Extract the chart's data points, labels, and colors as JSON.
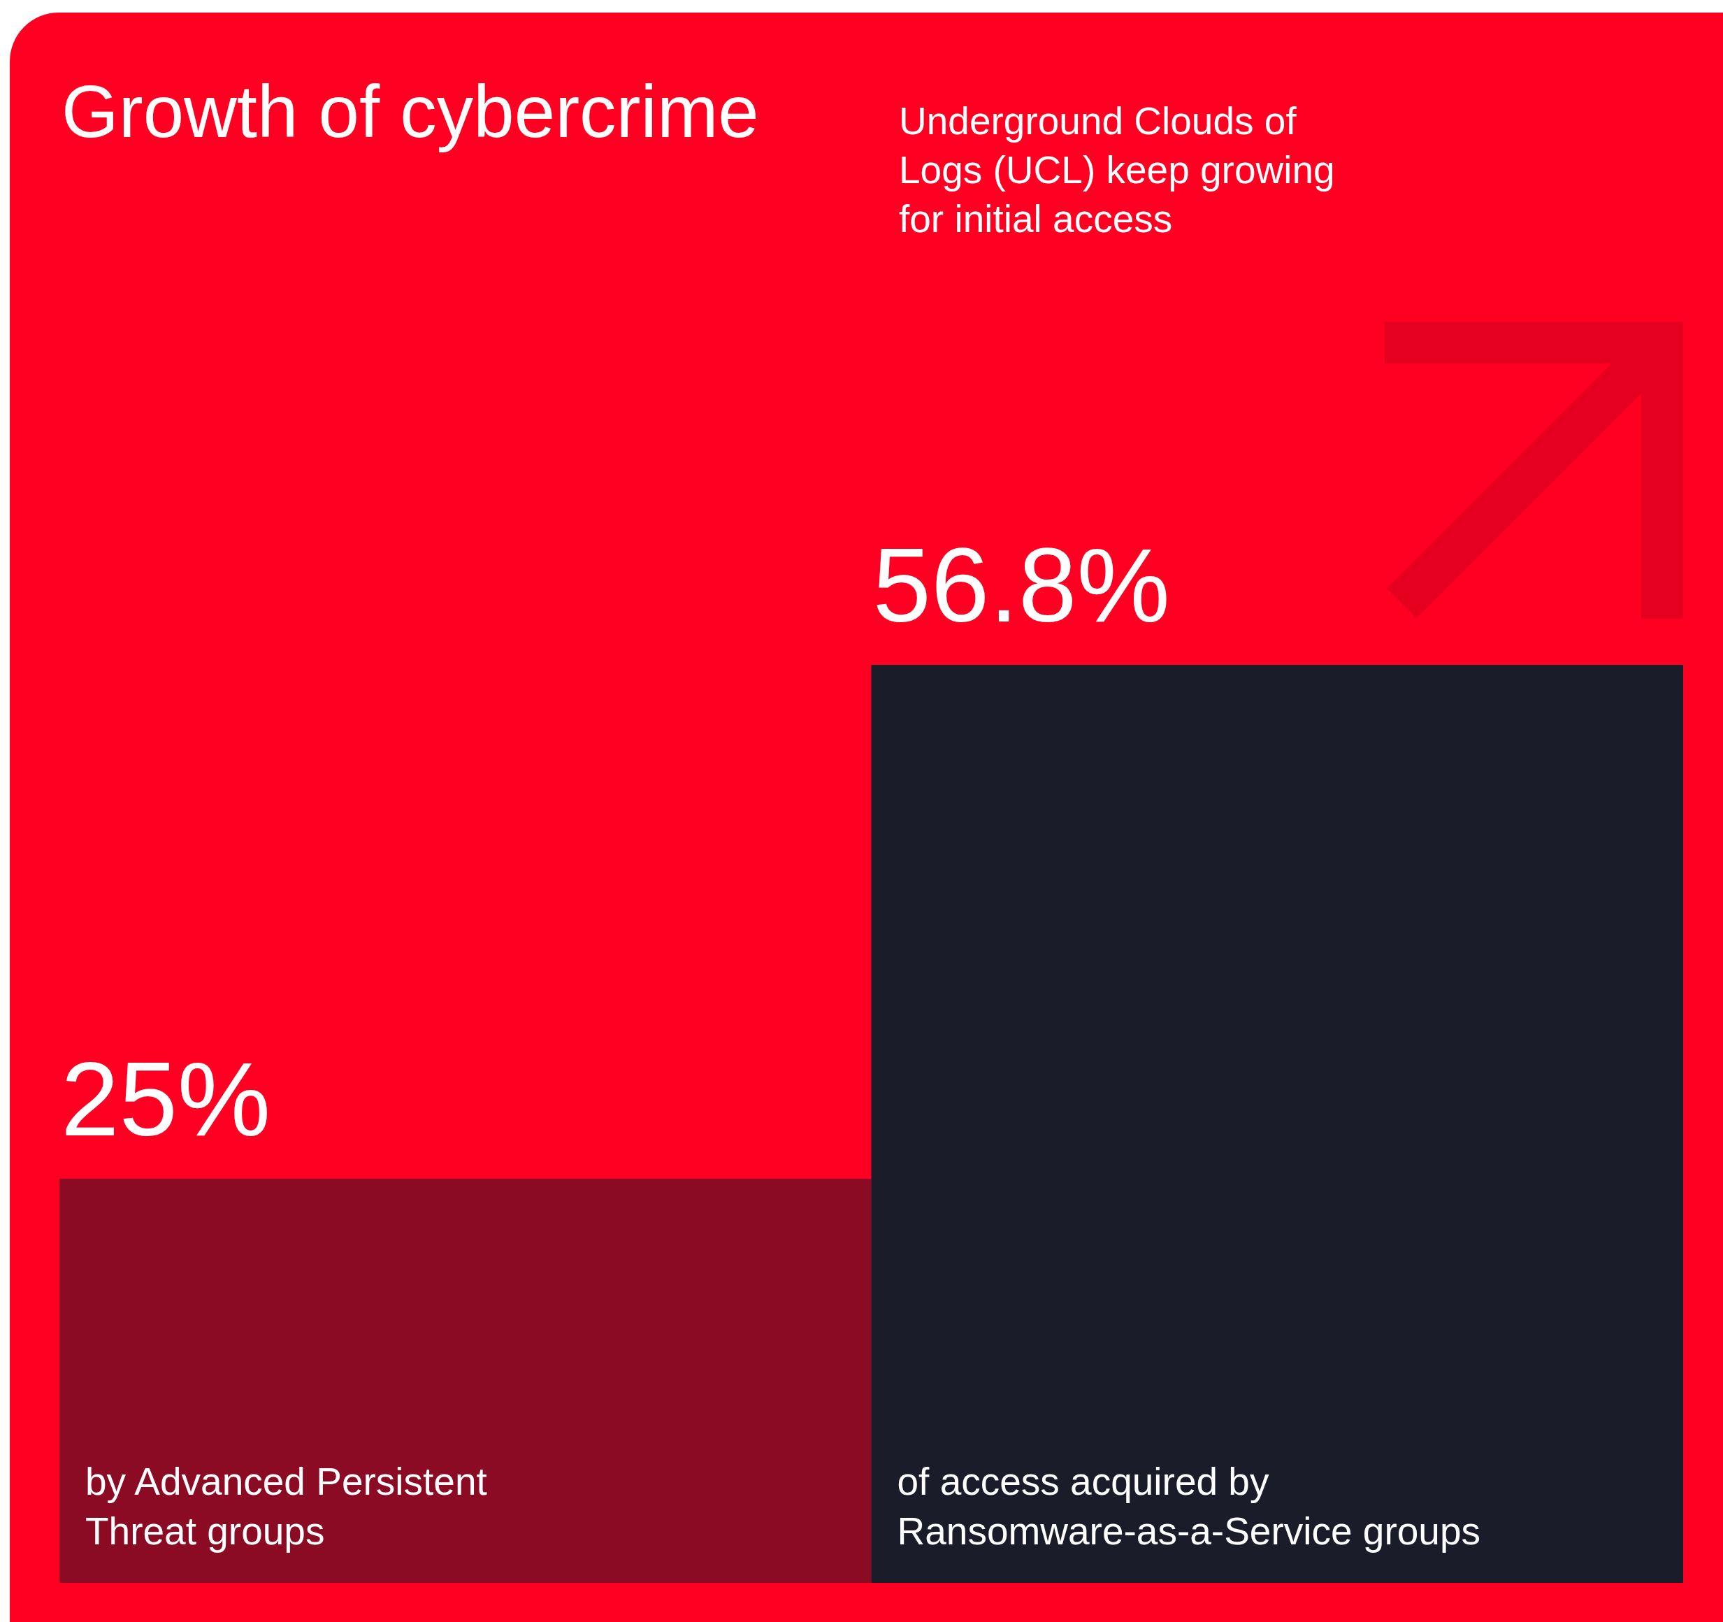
{
  "chart_data": {
    "type": "bar",
    "title": "Growth of cybercrime",
    "subtitle": "Underground Clouds of Logs (UCL) keep growing for initial access",
    "categories": [
      "by Advanced Persistent Threat groups",
      "of access acquired by Ransomware-as-a-Service groups"
    ],
    "values": [
      25,
      56.8
    ],
    "value_labels": [
      "25%",
      "56.8%"
    ],
    "colors": [
      "#8b0a24",
      "#1a1c29"
    ]
  }
}
